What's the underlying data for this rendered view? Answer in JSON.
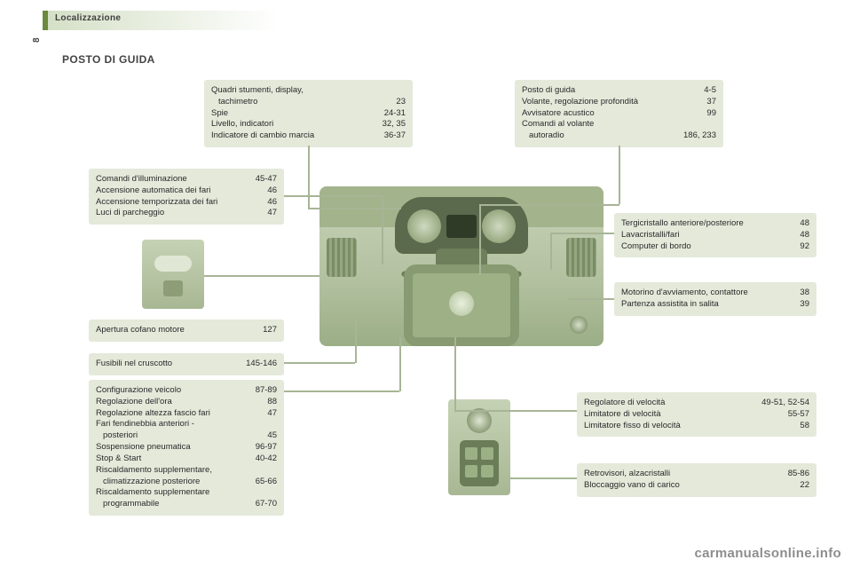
{
  "header": {
    "section": "Localizzazione",
    "page_number": "8",
    "title": "POSTO DI GUIDA"
  },
  "boxes": {
    "instruments": {
      "rows": [
        {
          "label": "Quadri stumenti, display,",
          "page": ""
        },
        {
          "label": "tachimetro",
          "indent": true,
          "page": "23"
        },
        {
          "label": "Spie",
          "page": "24-31"
        },
        {
          "label": "Livello, indicatori",
          "page": "32, 35"
        },
        {
          "label": "Indicatore di cambio marcia",
          "page": "36-37"
        }
      ]
    },
    "driving_pos": {
      "rows": [
        {
          "label": "Posto di guida",
          "page": "4-5"
        },
        {
          "label": "Volante, regolazione profondità",
          "page": "37"
        },
        {
          "label": "Avvisatore acustico",
          "page": "99"
        },
        {
          "label": "Comandi al volante",
          "page": ""
        },
        {
          "label": "autoradio",
          "indent": true,
          "page": "186, 233"
        }
      ]
    },
    "lighting": {
      "rows": [
        {
          "label": "Comandi d'illuminazione",
          "page": "45-47"
        },
        {
          "label": "Accensione automatica dei fari",
          "page": "46"
        },
        {
          "label": "Accensione temporizzata dei fari",
          "page": "46"
        },
        {
          "label": "Luci di parcheggio",
          "page": "47"
        }
      ]
    },
    "wiper": {
      "rows": [
        {
          "label": "Tergicristallo anteriore/posteriore",
          "page": "48"
        },
        {
          "label": "Lavacristalli/fari",
          "page": "48"
        },
        {
          "label": "Computer di bordo",
          "page": "92"
        }
      ]
    },
    "starter": {
      "rows": [
        {
          "label": "Motorino d'avviamento, contattore",
          "page": "38"
        },
        {
          "label": "Partenza assistita in salita",
          "page": "39"
        }
      ]
    },
    "bonnet": {
      "rows": [
        {
          "label": "Apertura cofano motore",
          "page": "127"
        }
      ]
    },
    "fuses": {
      "rows": [
        {
          "label": "Fusibili nel cruscotto",
          "page": "145-146"
        }
      ]
    },
    "config": {
      "rows": [
        {
          "label": "Configurazione veicolo",
          "page": "87-89"
        },
        {
          "label": "Regolazione dell'ora",
          "page": "88"
        },
        {
          "label": "Regolazione altezza fascio fari",
          "page": "47"
        },
        {
          "label": "Fari fendinebbia anteriori -",
          "page": ""
        },
        {
          "label": "posteriori",
          "indent": true,
          "page": "45"
        },
        {
          "label": "Sospensione pneumatica",
          "page": "96-97"
        },
        {
          "label": "Stop & Start",
          "page": "40-42"
        },
        {
          "label": "Riscaldamento supplementare,",
          "page": ""
        },
        {
          "label": "climatizzazione posteriore",
          "indent": true,
          "page": "65-66"
        },
        {
          "label": "Riscaldamento supplementare",
          "page": ""
        },
        {
          "label": "programmabile",
          "indent": true,
          "page": "67-70"
        }
      ]
    },
    "cruise": {
      "rows": [
        {
          "label": "Regolatore di velocità",
          "page": "49-51, 52-54"
        },
        {
          "label": "Limitatore di velocità",
          "page": "55-57"
        },
        {
          "label": "Limitatore fisso di velocità",
          "page": "58"
        }
      ]
    },
    "mirrors": {
      "rows": [
        {
          "label": "Retrovisori, alzacristalli",
          "page": "85-86"
        },
        {
          "label": "Bloccaggio vano di carico",
          "page": "22"
        }
      ]
    }
  },
  "watermark": "carmanualsonline.info",
  "style": {
    "box_bg": "#e4e9da",
    "body_bg": "#ffffff",
    "leader_color": "#a7b596",
    "text_color": "#2a2a2a",
    "font_size_pt": 9.5
  }
}
